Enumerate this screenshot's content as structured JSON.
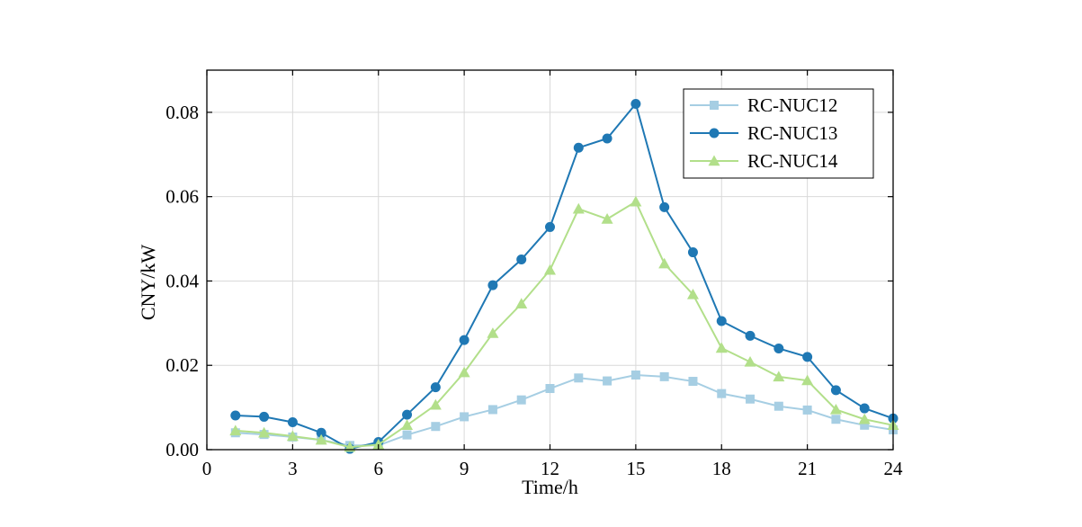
{
  "chart_data": {
    "type": "line",
    "title": "",
    "xlabel": "Time/h",
    "ylabel": "CNY/kW",
    "xlim": [
      0,
      24
    ],
    "ylim": [
      0,
      0.09
    ],
    "xticks": [
      0,
      3,
      6,
      9,
      12,
      15,
      18,
      21,
      24
    ],
    "xtick_labels": [
      "0",
      "3",
      "6",
      "9",
      "12",
      "15",
      "18",
      "21",
      "24"
    ],
    "yticks": [
      0,
      0.02,
      0.04,
      0.06,
      0.08
    ],
    "ytick_labels": [
      "0.00",
      "0.02",
      "0.04",
      "0.06",
      "0.08"
    ],
    "grid": true,
    "legend_position": "top-right",
    "x": [
      1,
      2,
      3,
      4,
      5,
      6,
      7,
      8,
      9,
      10,
      11,
      12,
      13,
      14,
      15,
      16,
      17,
      18,
      19,
      20,
      21,
      22,
      23,
      24
    ],
    "series": [
      {
        "name": "RC-NUC12",
        "color": "#a6cee3",
        "marker": "square",
        "values": [
          0.004,
          0.0036,
          0.003,
          0.0023,
          0.001,
          0.001,
          0.0035,
          0.0055,
          0.0078,
          0.0095,
          0.0118,
          0.0145,
          0.017,
          0.0163,
          0.0177,
          0.0173,
          0.0162,
          0.0133,
          0.012,
          0.0103,
          0.0094,
          0.0072,
          0.0058,
          0.0047
        ]
      },
      {
        "name": "RC-NUC13",
        "color": "#1f78b4",
        "marker": "circle",
        "values": [
          0.0081,
          0.0078,
          0.0065,
          0.004,
          0.0002,
          0.0018,
          0.0083,
          0.0148,
          0.026,
          0.039,
          0.0451,
          0.0528,
          0.0716,
          0.0738,
          0.082,
          0.0575,
          0.0468,
          0.0305,
          0.027,
          0.024,
          0.022,
          0.0141,
          0.0098,
          0.0074
        ]
      },
      {
        "name": "RC-NUC14",
        "color": "#b2df8a",
        "marker": "triangle",
        "values": [
          0.0045,
          0.004,
          0.0032,
          0.0023,
          0.0006,
          0.0012,
          0.0058,
          0.0106,
          0.0183,
          0.0276,
          0.0346,
          0.0426,
          0.0571,
          0.0547,
          0.0588,
          0.0441,
          0.0368,
          0.0241,
          0.0208,
          0.0173,
          0.0164,
          0.0095,
          0.0072,
          0.0058
        ]
      }
    ]
  }
}
